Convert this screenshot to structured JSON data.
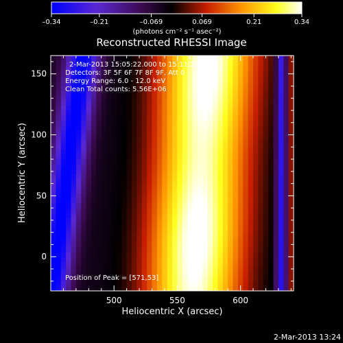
{
  "chart_data": {
    "type": "heatmap",
    "title": "Reconstructed RHESSI Image",
    "xlabel": "Heliocentric X (arcsec)",
    "ylabel": "Heliocentric Y (arcsec)",
    "xlim": [
      450,
      642
    ],
    "ylim": [
      -28,
      165
    ],
    "xticks": [
      500,
      550,
      600
    ],
    "yticks": [
      0,
      50,
      100,
      150
    ],
    "xtick_labels": [
      "500",
      "550",
      "600"
    ],
    "ytick_labels": [
      "0",
      "50",
      "100",
      "150"
    ],
    "colorbar": {
      "range": [
        -0.34,
        0.34
      ],
      "ticks": [
        -0.34,
        -0.21,
        -0.069,
        0.069,
        0.21,
        0.34
      ],
      "tick_labels": [
        "–0.34",
        "–0.21",
        "–0.069",
        "0.069",
        "0.21",
        "0.34"
      ],
      "unit_label": "(photons cm⁻² s⁻¹ asec⁻²)",
      "colormap": "rhessi-blue-purple-black-red-yellow-white"
    },
    "annotations": [
      "2-Mar-2013 15:05:22.000 to 15:11:22.000",
      "Detectors: 3F 5F 6F 7F 8F 9F, Att 0",
      "Energy Range: 6.0 - 12.0 keV",
      "Clean    Total counts: 5.56E+06"
    ],
    "peak_label": "Position of Peak = [571,53]",
    "peak": [
      571,
      53
    ],
    "image_model": {
      "grid_step_arcsec": 4,
      "ridge_center_x": 568,
      "ridge_tilt": 0.06,
      "ridge_width": 38,
      "negative_band_center_x": 462,
      "negative_band_width": 13,
      "negative_band_tilt": 0.13,
      "right_dark_band_x": 632,
      "right_dark_band_width": 4,
      "right_dark_band_depth": -0.26,
      "right_edge_value": 0.05
    }
  },
  "footer": {
    "timestamp": "2-Mar-2013 13:24"
  }
}
